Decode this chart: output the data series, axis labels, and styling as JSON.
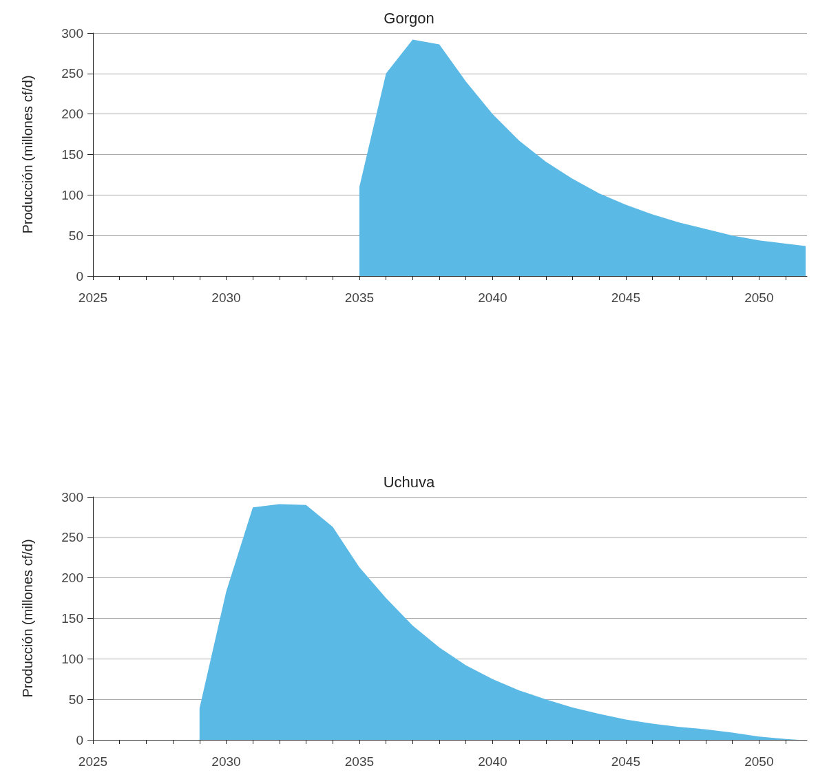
{
  "chart_data": [
    {
      "type": "area",
      "title": "Gorgon",
      "ylabel": "Producción (millones cf/d)",
      "color": "#5bb9e5",
      "grid": "y",
      "x": [
        2035,
        2036,
        2037,
        2038,
        2039,
        2040,
        2041,
        2042,
        2043,
        2044,
        2045,
        2046,
        2047,
        2048,
        2049,
        2050,
        2051,
        2051.75
      ],
      "values": [
        110,
        250,
        292,
        286,
        240,
        200,
        167,
        141,
        120,
        102,
        88,
        76,
        66,
        58,
        50,
        44,
        40,
        37
      ],
      "xlim": [
        2025,
        2051.8
      ],
      "xticks": [
        2025,
        {
          "value": 2026,
          "label": null
        },
        {
          "value": 2027,
          "label": null
        },
        {
          "value": 2028,
          "label": null
        },
        {
          "value": 2029,
          "label": null
        },
        2030,
        {
          "value": 2031,
          "label": null
        },
        {
          "value": 2032,
          "label": null
        },
        {
          "value": 2033,
          "label": null
        },
        {
          "value": 2034,
          "label": null
        },
        2035,
        {
          "value": 2036,
          "label": null
        },
        {
          "value": 2037,
          "label": null
        },
        {
          "value": 2038,
          "label": null
        },
        {
          "value": 2039,
          "label": null
        },
        2040,
        {
          "value": 2041,
          "label": null
        },
        {
          "value": 2042,
          "label": null
        },
        {
          "value": 2043,
          "label": null
        },
        {
          "value": 2044,
          "label": null
        },
        2045,
        {
          "value": 2046,
          "label": null
        },
        {
          "value": 2047,
          "label": null
        },
        {
          "value": 2048,
          "label": null
        },
        {
          "value": 2049,
          "label": null
        },
        2050,
        {
          "value": 2051,
          "label": null
        }
      ],
      "ylim": [
        0,
        300
      ],
      "yticks": [
        0,
        50,
        100,
        150,
        200,
        250,
        300
      ]
    },
    {
      "type": "area",
      "title": "Uchuva",
      "ylabel": "Producción (millones cf/d)",
      "color": "#5bb9e5",
      "grid": "y",
      "x": [
        2029,
        2030,
        2031,
        2032,
        2033,
        2034,
        2035,
        2036,
        2037,
        2038,
        2039,
        2040,
        2041,
        2042,
        2043,
        2044,
        2045,
        2046,
        2047,
        2048,
        2049,
        2050,
        2051,
        2051.5
      ],
      "values": [
        39,
        183,
        287,
        291,
        290,
        263,
        213,
        175,
        141,
        114,
        92,
        75,
        61,
        50,
        40,
        32,
        25,
        20,
        16,
        13,
        9,
        4,
        1,
        0
      ],
      "xlim": [
        2025,
        2051.8
      ],
      "xticks": [
        2025,
        {
          "value": 2026,
          "label": null
        },
        {
          "value": 2027,
          "label": null
        },
        {
          "value": 2028,
          "label": null
        },
        {
          "value": 2029,
          "label": null
        },
        2030,
        {
          "value": 2031,
          "label": null
        },
        {
          "value": 2032,
          "label": null
        },
        {
          "value": 2033,
          "label": null
        },
        {
          "value": 2034,
          "label": null
        },
        2035,
        {
          "value": 2036,
          "label": null
        },
        {
          "value": 2037,
          "label": null
        },
        {
          "value": 2038,
          "label": null
        },
        {
          "value": 2039,
          "label": null
        },
        2040,
        {
          "value": 2041,
          "label": null
        },
        {
          "value": 2042,
          "label": null
        },
        {
          "value": 2043,
          "label": null
        },
        {
          "value": 2044,
          "label": null
        },
        2045,
        {
          "value": 2046,
          "label": null
        },
        {
          "value": 2047,
          "label": null
        },
        {
          "value": 2048,
          "label": null
        },
        {
          "value": 2049,
          "label": null
        },
        2050,
        {
          "value": 2051,
          "label": null
        }
      ],
      "ylim": [
        0,
        300
      ],
      "yticks": [
        0,
        50,
        100,
        150,
        200,
        250,
        300
      ]
    }
  ]
}
